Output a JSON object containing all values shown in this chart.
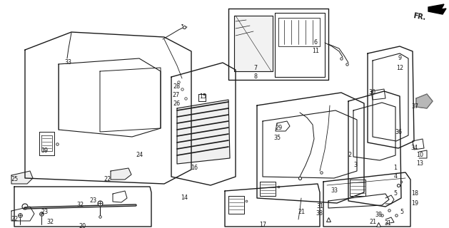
{
  "background_color": "#f5f5f0",
  "line_color": "#1a1a1a",
  "lw": 0.7,
  "labels": [
    [
      "33",
      95,
      88
    ],
    [
      "24",
      195,
      218
    ],
    [
      "39",
      62,
      212
    ],
    [
      "16",
      272,
      235
    ],
    [
      "14",
      258,
      278
    ],
    [
      "28",
      247,
      122
    ],
    [
      "27",
      247,
      133
    ],
    [
      "26",
      247,
      145
    ],
    [
      "15",
      284,
      135
    ],
    [
      "6",
      442,
      60
    ],
    [
      "11",
      442,
      72
    ],
    [
      "7",
      358,
      95
    ],
    [
      "8",
      358,
      108
    ],
    [
      "29",
      390,
      180
    ],
    [
      "35",
      388,
      193
    ],
    [
      "2",
      490,
      218
    ],
    [
      "3",
      498,
      232
    ],
    [
      "33",
      468,
      268
    ],
    [
      "21",
      422,
      298
    ],
    [
      "31",
      448,
      290
    ],
    [
      "38",
      447,
      300
    ],
    [
      "17",
      368,
      315
    ],
    [
      "9",
      560,
      82
    ],
    [
      "12",
      560,
      95
    ],
    [
      "30",
      521,
      130
    ],
    [
      "37",
      581,
      150
    ],
    [
      "36",
      558,
      185
    ],
    [
      "34",
      580,
      208
    ],
    [
      "10",
      588,
      218
    ],
    [
      "13",
      588,
      230
    ],
    [
      "1",
      554,
      235
    ],
    [
      "4",
      554,
      248
    ],
    [
      "18",
      581,
      272
    ],
    [
      "19",
      581,
      285
    ],
    [
      "5",
      554,
      272
    ],
    [
      "21",
      522,
      312
    ],
    [
      "31",
      543,
      314
    ],
    [
      "38",
      530,
      302
    ],
    [
      "5",
      563,
      298
    ],
    [
      "25",
      20,
      252
    ],
    [
      "22",
      150,
      252
    ],
    [
      "22",
      20,
      308
    ],
    [
      "23",
      130,
      282
    ],
    [
      "23",
      62,
      298
    ],
    [
      "32",
      112,
      288
    ],
    [
      "32",
      70,
      312
    ],
    [
      "20",
      115,
      318
    ]
  ],
  "label_fontsize": 5.8
}
